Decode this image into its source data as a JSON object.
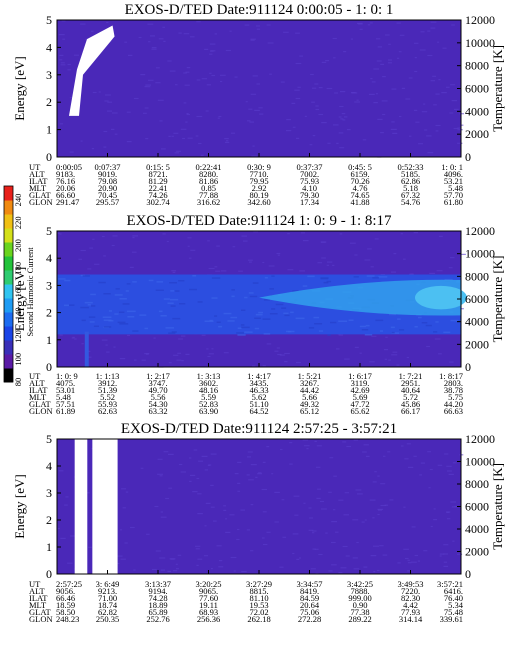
{
  "colorbar": {
    "label": "Second Harmonic Current",
    "ticks": [
      "240",
      "220",
      "200",
      "180",
      "160",
      "140",
      "120",
      "100",
      "80"
    ],
    "colors": [
      "#000000",
      "#5a1aa6",
      "#3a2fb8",
      "#1a44e6",
      "#1c6cf0",
      "#1e9cf4",
      "#30c4f0",
      "#2ecc71",
      "#22c33a",
      "#6ad41e",
      "#d4e01a",
      "#f0c014",
      "#f08a10",
      "#e8201a"
    ]
  },
  "panel_colors": {
    "background": "#4a28b8",
    "speckle": "#5a3ccc",
    "mid": "#2c4ee0",
    "light": "#33a0ec",
    "white": "#ffffff"
  },
  "chart_data": [
    {
      "type": "heatmap",
      "title": "EXOS-D/TED   Date:911124  0:00:05 - 1: 0: 1",
      "ylabel": "Energy [eV]",
      "y2label": "Temperature [K]",
      "ylim": [
        0,
        5
      ],
      "y2lim": [
        0,
        12000
      ],
      "yticks": [
        "0",
        "1",
        "2",
        "3",
        "4",
        "5"
      ],
      "y2ticks": [
        "0",
        "2000",
        "4000",
        "6000",
        "8000",
        "10000",
        "12000"
      ],
      "table": {
        "rows": [
          "UT",
          "ALT",
          "ILAT",
          "MLT",
          "GLAT",
          "GLON"
        ],
        "columns": [
          [
            "0:00:05",
            "9183.",
            "76.16",
            "20.06",
            "66.60",
            "291.47"
          ],
          [
            "0:07:37",
            "9019.",
            "79.08",
            "20.90",
            "70.45",
            "295.57"
          ],
          [
            "0:15: 5",
            "8721.",
            "81.29",
            "22.41",
            "74.26",
            "302.74"
          ],
          [
            "0:22:41",
            "8280.",
            "81.86",
            "0.85",
            "77.88",
            "316.62"
          ],
          [
            "0:30: 9",
            "7710.",
            "79.95",
            "2.92",
            "80.19",
            "342.60"
          ],
          [
            "0:37:37",
            "7002.",
            "75.93",
            "4.10",
            "79.30",
            "17.34"
          ],
          [
            "0:45: 5",
            "6159.",
            "70.26",
            "4.76",
            "74.65",
            "41.88"
          ],
          [
            "0:52:33",
            "5185.",
            "62.86",
            "5.18",
            "67.32",
            "54.76"
          ],
          [
            "1: 0: 1",
            "4096.",
            "53.21",
            "5.48",
            "57.70",
            "61.80"
          ]
        ]
      },
      "features": [
        {
          "kind": "white-band",
          "x_range_cols": [
            0.0,
            1.1
          ],
          "energy_range": [
            1.5,
            4.8
          ]
        }
      ]
    },
    {
      "type": "heatmap",
      "title": "EXOS-D/TED   Date:911124  1: 0: 9 - 1: 8:17",
      "ylabel": "Energy [eV]",
      "y2label": "Temperature [K]",
      "ylim": [
        0,
        5
      ],
      "y2lim": [
        0,
        12000
      ],
      "yticks": [
        "0",
        "1",
        "2",
        "3",
        "4",
        "5"
      ],
      "y2ticks": [
        "0",
        "2000",
        "4000",
        "6000",
        "8000",
        "10000",
        "12000"
      ],
      "table": {
        "rows": [
          "UT",
          "ALT",
          "ILAT",
          "MLT",
          "GLAT",
          "GLON"
        ],
        "columns": [
          [
            "1: 0: 9",
            "4075.",
            "53.01",
            "5.48",
            "57.51",
            "61.89"
          ],
          [
            "1: 1:13",
            "3912.",
            "51.39",
            "5.52",
            "55.93",
            "62.63"
          ],
          [
            "1: 2:17",
            "3747.",
            "49.70",
            "5.56",
            "54.30",
            "63.32"
          ],
          [
            "1: 3:13",
            "3602.",
            "48.16",
            "5.59",
            "52.83",
            "63.90"
          ],
          [
            "1: 4:17",
            "3435.",
            "46.33",
            "5.62",
            "51.10",
            "64.52"
          ],
          [
            "1: 5:21",
            "3267.",
            "44.42",
            "5.66",
            "49.32",
            "65.12"
          ],
          [
            "1: 6:17",
            "3119.",
            "42.69",
            "5.69",
            "47.72",
            "65.62"
          ],
          [
            "1: 7:21",
            "2951.",
            "40.64",
            "5.72",
            "45.86",
            "66.17"
          ],
          [
            "1: 8:17",
            "2803.",
            "38.78",
            "5.75",
            "44.20",
            "66.63"
          ]
        ]
      },
      "features": [
        {
          "kind": "mid-band",
          "energy_range": [
            1.2,
            3.4
          ]
        },
        {
          "kind": "light-band",
          "x_range_cols": [
            4.0,
            8.0
          ],
          "energy_range": [
            1.9,
            3.2
          ]
        }
      ]
    },
    {
      "type": "heatmap",
      "title": "EXOS-D/TED   Date:911124  2:57:25 - 3:57:21",
      "ylabel": "Energy [eV]",
      "y2label": "Temperature [K]",
      "ylim": [
        0,
        5
      ],
      "y2lim": [
        0,
        12000
      ],
      "yticks": [
        "0",
        "1",
        "2",
        "3",
        "4",
        "5"
      ],
      "y2ticks": [
        "0",
        "2000",
        "4000",
        "6000",
        "8000",
        "10000",
        "12000"
      ],
      "table": {
        "rows": [
          "UT",
          "ALT",
          "ILAT",
          "MLT",
          "GLAT",
          "GLON"
        ],
        "columns": [
          [
            "2:57:25",
            "9056.",
            "66.46",
            "18.59",
            "58.50",
            "248.23"
          ],
          [
            "3: 6:49",
            "9213.",
            "71.00",
            "18.74",
            "62.82",
            "250.35"
          ],
          [
            "3:13:37",
            "9194.",
            "74.28",
            "18.89",
            "65.89",
            "252.76"
          ],
          [
            "3:20:25",
            "9065.",
            "77.60",
            "19.11",
            "68.93",
            "256.36"
          ],
          [
            "3:27:29",
            "8815.",
            "81.10",
            "19.53",
            "72.02",
            "262.18"
          ],
          [
            "3:34:57",
            "8419.",
            "84.59",
            "20.64",
            "75.06",
            "272.28"
          ],
          [
            "3:42:25",
            "7888.",
            "999.00",
            "0.90",
            "77.38",
            "289.22"
          ],
          [
            "3:49:53",
            "7220.",
            "82.30",
            "4.42",
            "77.93",
            "314.14"
          ],
          [
            "3:57:21",
            "6416.",
            "76.40",
            "5.34",
            "75.48",
            "339.61"
          ]
        ]
      },
      "features": [
        {
          "kind": "white-band",
          "x_range_cols": [
            0.35,
            0.6
          ],
          "energy_range": [
            0,
            5
          ]
        },
        {
          "kind": "white-band",
          "x_range_cols": [
            0.7,
            1.2
          ],
          "energy_range": [
            0,
            5
          ]
        }
      ]
    }
  ]
}
